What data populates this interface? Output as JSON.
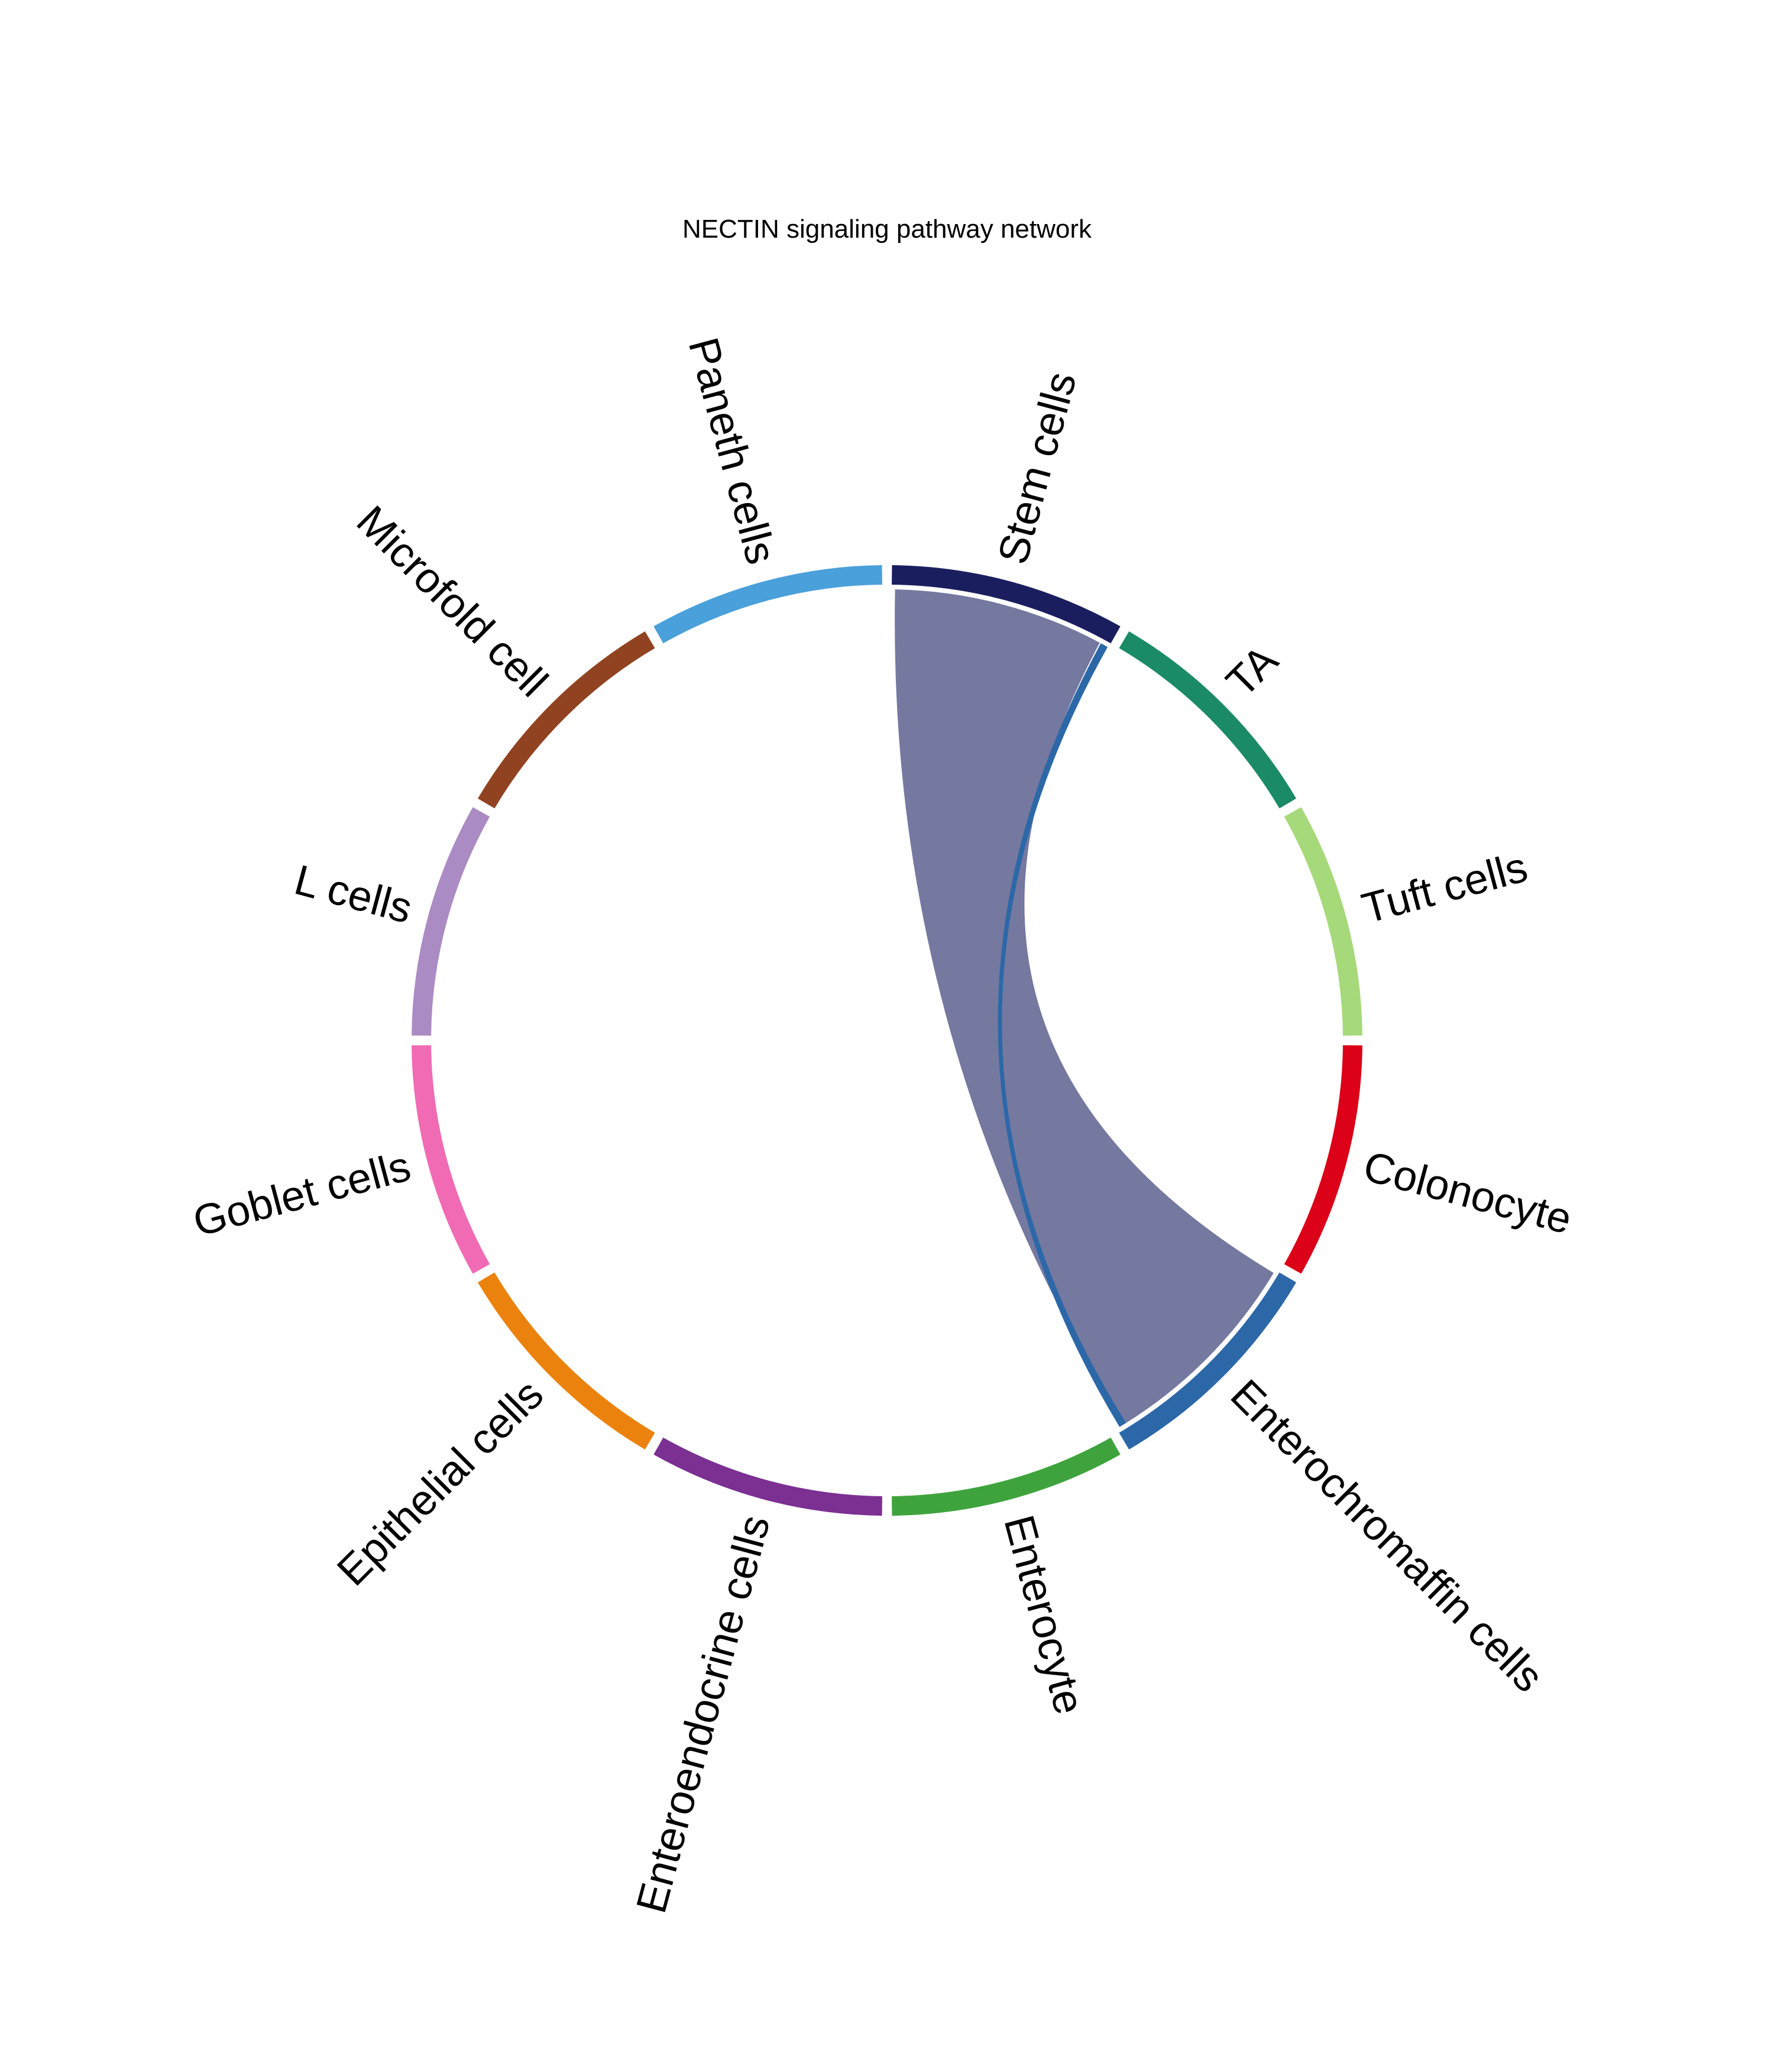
{
  "chart_data": {
    "type": "chord",
    "title": "NECTIN signaling pathway network",
    "sectors": [
      {
        "name": "Stem cells",
        "color": "#1b1e5e"
      },
      {
        "name": "TA",
        "color": "#1b8a67"
      },
      {
        "name": "Tuft cells",
        "color": "#a6d97a"
      },
      {
        "name": "Colonocyte",
        "color": "#dc0018"
      },
      {
        "name": "Enterochromaffin cells",
        "color": "#2c68a8"
      },
      {
        "name": "Enterocyte",
        "color": "#3fa33d"
      },
      {
        "name": "Enteroendocrine cells",
        "color": "#7b3092"
      },
      {
        "name": "Epithelial cells",
        "color": "#ec820e"
      },
      {
        "name": "Goblet cells",
        "color": "#f06bb3"
      },
      {
        "name": "L cells",
        "color": "#ab8bc3"
      },
      {
        "name": "Microfold cell",
        "color": "#914321"
      },
      {
        "name": "Paneth cells",
        "color": "#4aa0da"
      }
    ],
    "links": [
      {
        "source": "Enterochromaffin cells",
        "target": "Stem cells",
        "value": 0.97,
        "color": "#7579a0"
      },
      {
        "source": "Enterochromaffin cells",
        "target": "Stem cells",
        "value": 0.03,
        "color": "#2c68a8"
      }
    ]
  }
}
